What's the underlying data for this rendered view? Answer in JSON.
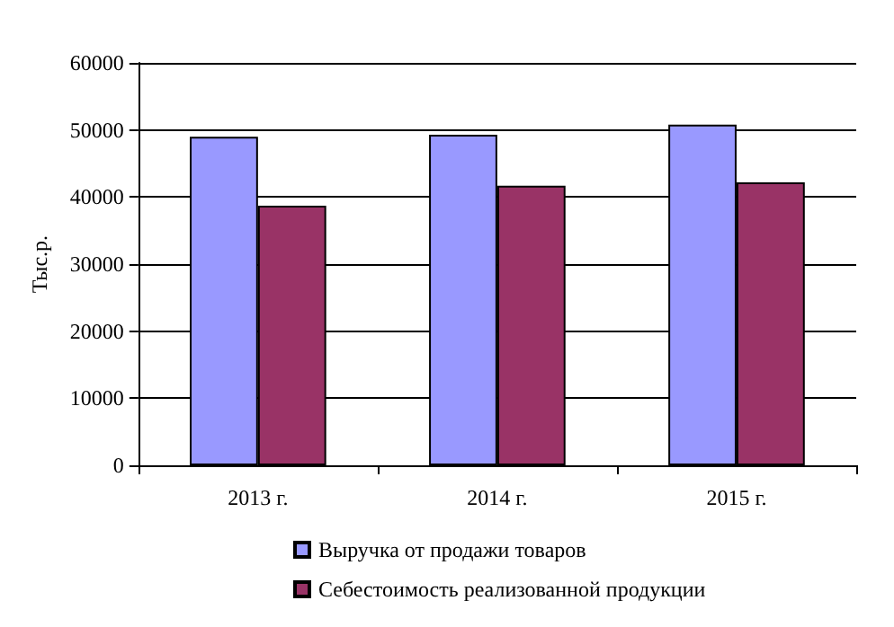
{
  "chart_data": {
    "type": "bar",
    "ylabel": "Тыс.р.",
    "categories": [
      "2013 г.",
      "2014 г.",
      "2015 г."
    ],
    "series": [
      {
        "name": "Выручка от продажи товаров",
        "color": "#9999ff",
        "values": [
          49000,
          49300,
          50800
        ]
      },
      {
        "name": "Себестоимость реализованной продукции",
        "color": "#993366",
        "values": [
          38700,
          41700,
          42200
        ]
      }
    ],
    "ylim": [
      0,
      60000
    ],
    "yticks": [
      0,
      10000,
      20000,
      30000,
      40000,
      50000,
      60000
    ],
    "grid": "y",
    "legend": "bottom"
  }
}
